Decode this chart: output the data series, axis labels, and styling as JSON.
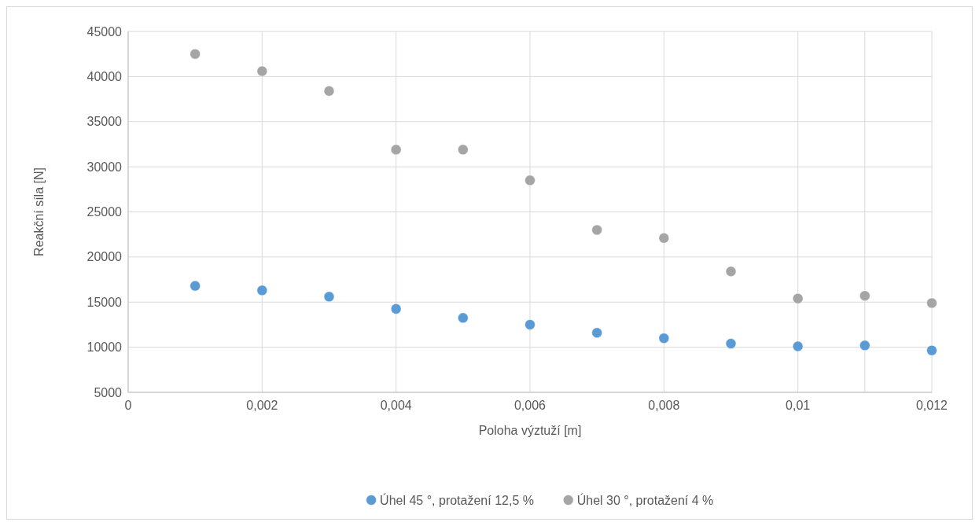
{
  "chart_data": {
    "type": "scatter",
    "xlabel": "Poloha výztuží [m]",
    "ylabel": "Reakční síla [N]",
    "x": [
      0.001,
      0.002,
      0.003,
      0.004,
      0.005,
      0.006,
      0.007,
      0.008,
      0.009,
      0.01,
      0.011,
      0.012
    ],
    "series": [
      {
        "name": "Úhel 45 °, protažení 12,5 %",
        "color": "#5b9bd5",
        "values": [
          16800,
          16300,
          15600,
          14250,
          13250,
          12500,
          11600,
          11000,
          10400,
          10100,
          10200,
          9650
        ]
      },
      {
        "name": "Úhel 30 °, protažení 4 %",
        "color": "#a5a5a5",
        "values": [
          42500,
          40600,
          38400,
          31900,
          31900,
          28500,
          23000,
          22100,
          18400,
          15400,
          15700,
          14900
        ]
      }
    ],
    "xlim": [
      0,
      0.012
    ],
    "ylim": [
      5000,
      45000
    ],
    "xticks": [
      0,
      {
        "value": 0.002,
        "label": "0,002"
      },
      {
        "value": 0.004,
        "label": "0,004"
      },
      {
        "value": 0.006,
        "label": "0,006"
      },
      {
        "value": 0.008,
        "label": "0,008"
      },
      {
        "value": 0.01,
        "label": "0,01"
      },
      {
        "value": 0.011,
        "label": null
      },
      {
        "value": 0.012,
        "label": "0,012"
      }
    ],
    "yticks": [
      5000,
      10000,
      15000,
      20000,
      25000,
      30000,
      35000,
      40000,
      45000
    ],
    "grid": true,
    "legend": "bottom",
    "marker": "circle"
  }
}
